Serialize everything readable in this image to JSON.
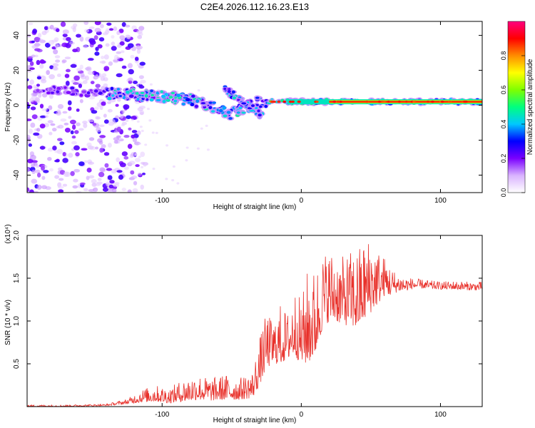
{
  "figure_title": "C2E4.2026.112.16.23.E13",
  "chart_data": [
    {
      "type": "heatmap",
      "title": "C2E4.2026.112.16.23.E13",
      "xlabel": "Height of straight line (km)",
      "ylabel": "Frequency (Hz)",
      "xlim": [
        -197,
        130
      ],
      "ylim": [
        -50,
        48
      ],
      "x_ticks": [
        -100,
        0,
        100
      ],
      "y_ticks": [
        -40,
        -20,
        0,
        20,
        40
      ],
      "colorbar": {
        "label": "Normalized spectral amplitude",
        "range": [
          0.0,
          1.0
        ],
        "ticks": [
          0.0,
          0.2,
          0.4,
          0.6,
          0.8
        ],
        "tick_labels": [
          "0.0",
          "0.2",
          "0.4",
          "0.6",
          "0.8"
        ],
        "colormap": [
          "#ffffff",
          "#d9b3ff",
          "#7a00ff",
          "#0000ff",
          "#00c8ff",
          "#00ff7f",
          "#7fff00",
          "#ffff00",
          "#ff8c00",
          "#ff0000",
          "#ff007f"
        ]
      },
      "regions": [
        {
          "name": "diffuse noise",
          "x_range": [
            -197,
            -120
          ],
          "freq_range": [
            -50,
            48
          ],
          "amplitude": 0.1
        },
        {
          "name": "main track",
          "points": [
            [
              -197,
              10
            ],
            [
              -150,
              7
            ],
            [
              -120,
              6
            ],
            [
              -100,
              5
            ],
            [
              -80,
              3
            ],
            [
              -65,
              0
            ],
            [
              -50,
              -5
            ],
            [
              -40,
              -1
            ],
            [
              -30,
              2
            ],
            [
              -20,
              2
            ],
            [
              0,
              2
            ],
            [
              50,
              2
            ],
            [
              130,
              2
            ]
          ],
          "amplitude_range": [
            0.2,
            0.85
          ]
        },
        {
          "name": "branch",
          "points": [
            [
              -55,
              9
            ],
            [
              -45,
              4
            ],
            [
              -35,
              -2
            ],
            [
              -28,
              -6
            ]
          ],
          "amplitude": 0.35
        },
        {
          "name": "steady line",
          "x_range": [
            -20,
            130
          ],
          "frequency": 2,
          "amplitude": 0.8
        }
      ]
    },
    {
      "type": "line",
      "xlabel": "Height of straight line (km)",
      "ylabel": "SNR (10 * v/v)",
      "y_multiplier_label": "(x10⁴)",
      "xlim": [
        -197,
        130
      ],
      "ylim": [
        0.0,
        2.0
      ],
      "x_ticks": [
        -100,
        0,
        100
      ],
      "y_ticks": [
        0.5,
        1.0,
        1.5,
        2.0
      ],
      "y_tick_labels": [
        "0.5",
        "1.0",
        "1.5",
        "2.0"
      ],
      "series": [
        {
          "name": "SNR",
          "color": "#e8302a",
          "x": [
            -197,
            -170,
            -140,
            -125,
            -115,
            -105,
            -95,
            -85,
            -75,
            -65,
            -55,
            -45,
            -35,
            -30,
            -25,
            -20,
            -15,
            -10,
            -5,
            0,
            5,
            10,
            15,
            20,
            25,
            30,
            35,
            40,
            45,
            50,
            55,
            60,
            65,
            70,
            75,
            80,
            90,
            100,
            110,
            120,
            130
          ],
          "y_low": [
            0.0,
            0.0,
            0.01,
            0.03,
            0.05,
            0.06,
            0.04,
            0.06,
            0.08,
            0.07,
            0.08,
            0.08,
            0.1,
            0.25,
            0.45,
            0.5,
            0.5,
            0.55,
            0.6,
            0.5,
            0.5,
            0.6,
            0.9,
            1.0,
            1.0,
            0.95,
            0.95,
            0.9,
            1.0,
            1.1,
            1.2,
            1.3,
            1.3,
            1.35,
            1.35,
            1.38,
            1.38,
            1.37,
            1.37,
            1.36,
            1.36
          ],
          "y_high": [
            0.02,
            0.02,
            0.03,
            0.09,
            0.2,
            0.25,
            0.22,
            0.32,
            0.38,
            0.33,
            0.38,
            0.33,
            0.42,
            0.8,
            1.1,
            1.0,
            1.2,
            1.1,
            1.4,
            1.25,
            1.65,
            1.6,
            1.8,
            1.85,
            1.8,
            1.75,
            1.82,
            1.85,
            1.95,
            2.0,
            1.85,
            1.75,
            1.62,
            1.55,
            1.52,
            1.5,
            1.48,
            1.46,
            1.47,
            1.46,
            1.46
          ]
        }
      ]
    }
  ]
}
